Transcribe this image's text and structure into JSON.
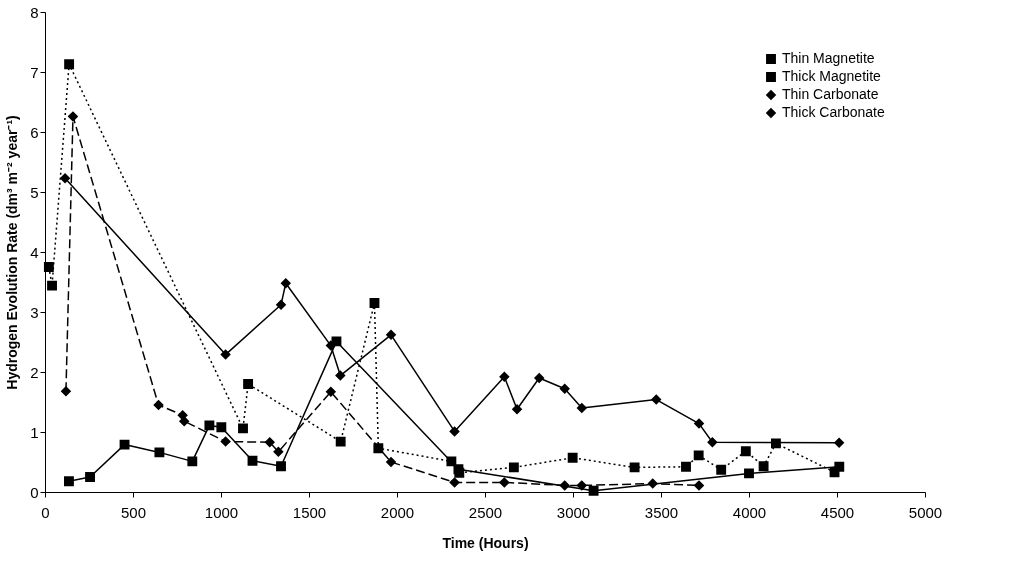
{
  "chart_data": {
    "type": "line",
    "xlabel": "Time (Hours)",
    "ylabel": "Hydrogen Evolution Rate (dm³ m⁻² year⁻¹)",
    "xlim": [
      0,
      5000
    ],
    "xticks": [
      0,
      500,
      1000,
      1500,
      2000,
      2500,
      3000,
      3500,
      4000,
      4500,
      5000
    ],
    "ylim": [
      0,
      8
    ],
    "yticks": [
      0,
      1,
      2,
      3,
      4,
      5,
      6,
      7,
      8
    ],
    "grid": false,
    "legend": "top right",
    "series": [
      {
        "name": "Thin Magnetite",
        "color": "#000000",
        "marker": "square",
        "line_style": "dotted",
        "x": [
          22,
          40,
          137,
          1125,
          1154,
          1680,
          1872,
          1894,
          2309,
          2354,
          2664,
          2998,
          3350,
          3642,
          3714,
          3842,
          3982,
          4083,
          4153,
          4486
        ],
        "values": [
          3.75,
          3.44,
          7.13,
          1.06,
          1.8,
          0.84,
          3.15,
          0.73,
          0.51,
          0.32,
          0.41,
          0.57,
          0.41,
          0.42,
          0.61,
          0.37,
          0.68,
          0.43,
          0.81,
          0.33
        ]
      },
      {
        "name": "Thick Magnetite",
        "color": "#000000",
        "marker": "square",
        "line_style": "solid",
        "x": [
          136,
          256,
          452,
          650,
          837,
          934,
          1002,
          1179,
          1341,
          1656,
          2349,
          3117,
          4000,
          4513
        ],
        "values": [
          0.18,
          0.25,
          0.79,
          0.66,
          0.51,
          1.11,
          1.08,
          0.52,
          0.43,
          2.51,
          0.38,
          0.02,
          0.31,
          0.42
        ]
      },
      {
        "name": "Thin Carbonate",
        "color": "#000000",
        "marker": "diamond",
        "line_style": "solid",
        "x": [
          114,
          1026,
          1341,
          1368,
          1624,
          1678,
          1966,
          2327,
          2610,
          2682,
          2808,
          2953,
          3050,
          3473,
          3716,
          3792,
          4512
        ],
        "values": [
          5.23,
          2.29,
          3.12,
          3.48,
          2.44,
          1.94,
          2.62,
          1.01,
          1.92,
          1.38,
          1.9,
          1.72,
          1.4,
          1.54,
          1.14,
          0.83,
          0.82
        ]
      },
      {
        "name": "Thick Carbonate",
        "color": "#000000",
        "marker": "diamond",
        "line_style": "dashed",
        "x": [
          119,
          159,
          645,
          782,
          791,
          1026,
          1277,
          1326,
          1624,
          1966,
          2327,
          2610,
          2953,
          3050,
          3453,
          3716
        ],
        "values": [
          1.68,
          6.26,
          1.45,
          1.28,
          1.18,
          0.84,
          0.83,
          0.67,
          1.67,
          0.5,
          0.16,
          0.16,
          0.11,
          0.11,
          0.14,
          0.11
        ]
      }
    ]
  }
}
